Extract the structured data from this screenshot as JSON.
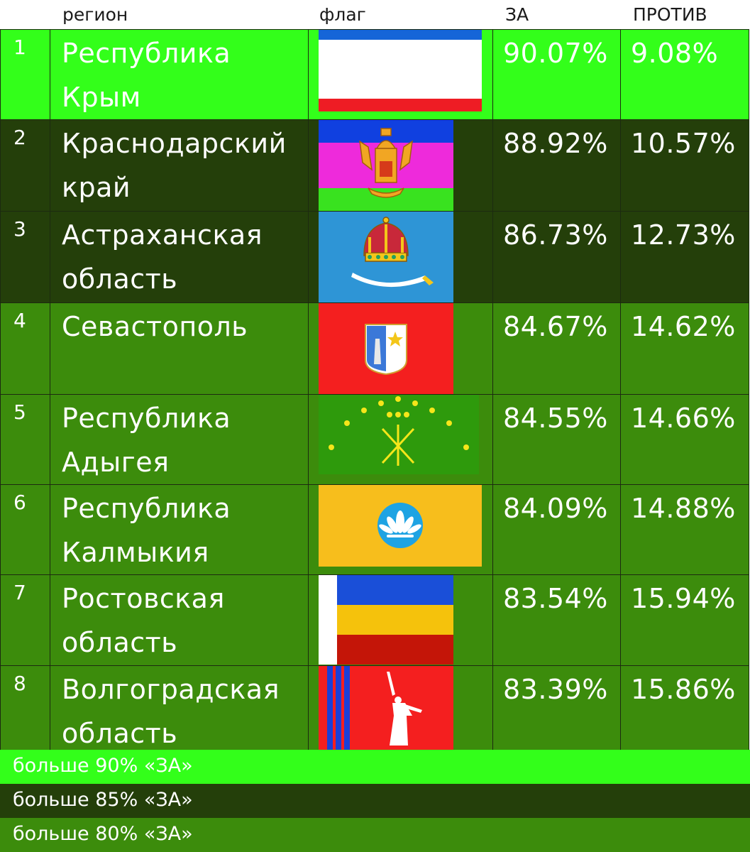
{
  "header": {
    "region": "регион",
    "flag": "флаг",
    "for": "ЗА",
    "against": "ПРОТИВ"
  },
  "colors": {
    "over90": "#33ff1a",
    "over85": "#243f0a",
    "over80": "#3c8c0c"
  },
  "rows": [
    {
      "num": "1",
      "name1": "Республика",
      "name2": "Крым",
      "for": "90.07%",
      "against": "9.08%",
      "flag_icon": "crimea-flag-icon"
    },
    {
      "num": "2",
      "name1": "Краснодарский",
      "name2": "край",
      "for": "88.92%",
      "against": "10.57%",
      "flag_icon": "krasnodar-flag-icon"
    },
    {
      "num": "3",
      "name1": "Астраханская",
      "name2": "область",
      "for": "86.73%",
      "against": "12.73%",
      "flag_icon": "astrakhan-flag-icon"
    },
    {
      "num": "4",
      "name1": "Севастополь",
      "name2": "",
      "for": "84.67%",
      "against": "14.62%",
      "flag_icon": "sevastopol-flag-icon"
    },
    {
      "num": "5",
      "name1": "Республика",
      "name2": "Адыгея",
      "for": "84.55%",
      "against": "14.66%",
      "flag_icon": "adygea-flag-icon"
    },
    {
      "num": "6",
      "name1": "Республика",
      "name2": "Калмыкия",
      "for": "84.09%",
      "against": "14.88%",
      "flag_icon": "kalmykia-flag-icon"
    },
    {
      "num": "7",
      "name1": "Ростовская",
      "name2": "область",
      "for": "83.54%",
      "against": "15.94%",
      "flag_icon": "rostov-flag-icon"
    },
    {
      "num": "8",
      "name1": "Волгоградская",
      "name2": "область",
      "for": "83.39%",
      "against": "15.86%",
      "flag_icon": "volgograd-flag-icon"
    }
  ],
  "legend": {
    "over90": "больше 90% «ЗА»",
    "over85": "больше 85% «ЗА»",
    "over80": "больше 80% «ЗА»"
  }
}
